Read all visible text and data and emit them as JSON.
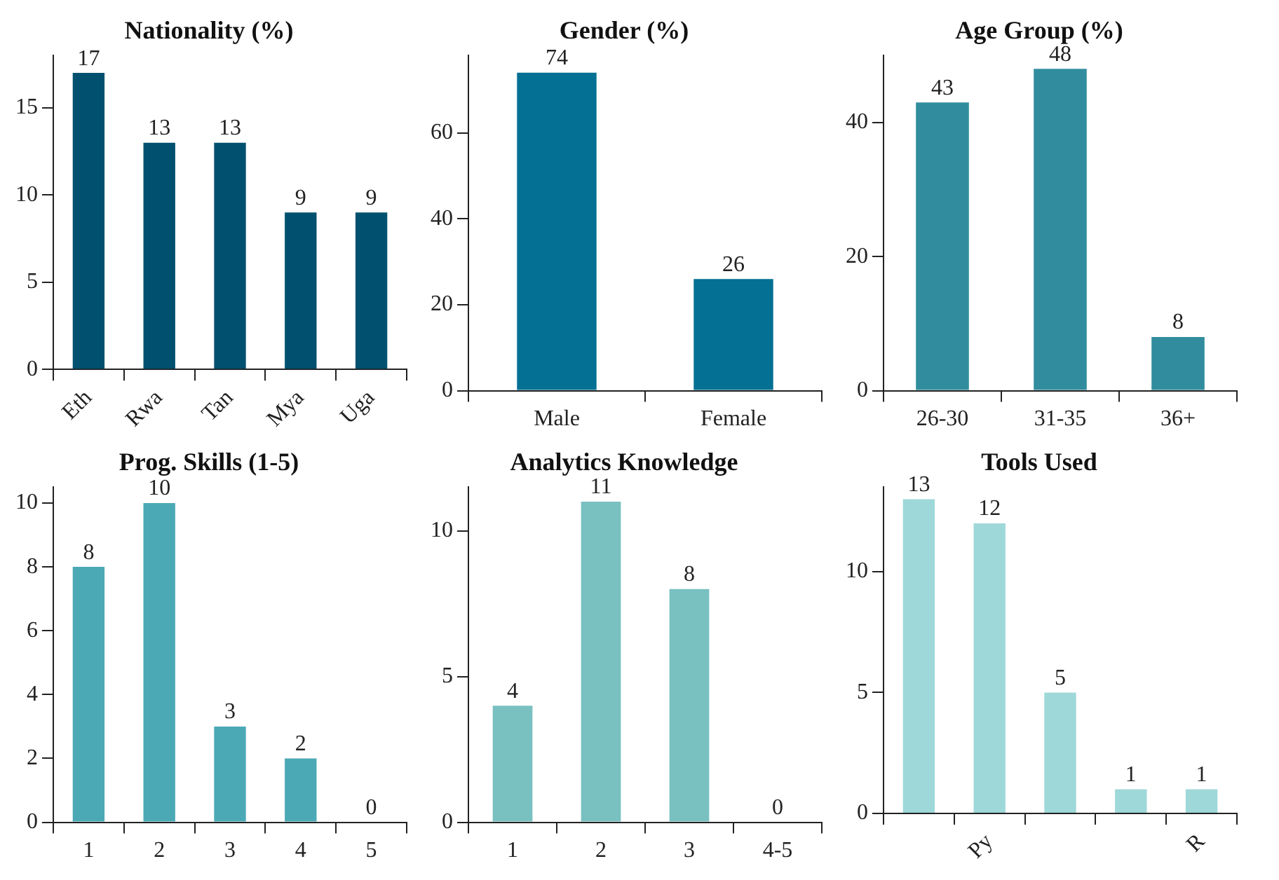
{
  "chart_data": [
    {
      "type": "bar",
      "title": "Nationality (%)",
      "categories": [
        "Eth",
        "Rwa",
        "Tan",
        "Mya",
        "Uga"
      ],
      "values": [
        17,
        13,
        13,
        9,
        9
      ],
      "color": "#01506f",
      "ylim": [
        0,
        18
      ],
      "yticks": [
        0,
        5,
        10,
        15
      ],
      "data_labels": true,
      "grid": false,
      "legend": false
    },
    {
      "type": "bar",
      "title": "Gender (%)",
      "categories": [
        "Male",
        "Female"
      ],
      "values": [
        74,
        26
      ],
      "color": "#037094",
      "ylim": [
        0,
        78
      ],
      "yticks": [
        0,
        20,
        40,
        60
      ],
      "data_labels": true,
      "grid": false,
      "legend": false
    },
    {
      "type": "bar",
      "title": "Age Group (%)",
      "categories": [
        "26-30",
        "31-35",
        "36+"
      ],
      "values": [
        43,
        48,
        8
      ],
      "color": "#318d9e",
      "ylim": [
        0,
        50
      ],
      "yticks": [
        0,
        20,
        40
      ],
      "data_labels": true,
      "grid": false,
      "legend": false
    },
    {
      "type": "bar",
      "title": "Prog. Skills (1-5)",
      "categories": [
        "1",
        "2",
        "3",
        "4",
        "5"
      ],
      "values": [
        8,
        10,
        3,
        2,
        0
      ],
      "color": "#4ba9b5",
      "ylim": [
        0,
        10.5
      ],
      "yticks": [
        0,
        2,
        4,
        6,
        8,
        10
      ],
      "data_labels": true,
      "grid": false,
      "legend": false
    },
    {
      "type": "bar",
      "title": "Analytics Knowledge",
      "categories": [
        "1",
        "2",
        "3",
        "4-5"
      ],
      "values": [
        4,
        11,
        8,
        0
      ],
      "color": "#79c0c0",
      "ylim": [
        0,
        11.5
      ],
      "yticks": [
        0,
        5,
        10
      ],
      "data_labels": true,
      "grid": false,
      "legend": false
    },
    {
      "type": "bar",
      "title": "Tools Used",
      "categories": [
        null,
        "Py",
        null,
        null,
        "R"
      ],
      "values": [
        13,
        12,
        5,
        1,
        1
      ],
      "color": "#9fd8d8",
      "ylim": [
        0,
        13.5
      ],
      "yticks": [
        0,
        5,
        10
      ],
      "data_labels": true,
      "grid": false,
      "legend": false
    }
  ]
}
